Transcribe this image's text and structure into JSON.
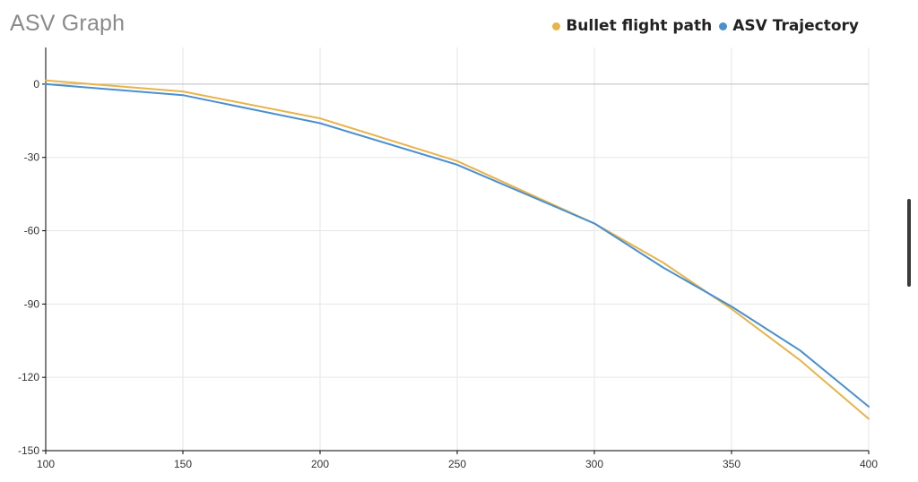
{
  "chart_data": {
    "type": "line",
    "title": "ASV Graph",
    "xlabel": "",
    "ylabel": "",
    "x": [
      100,
      150,
      200,
      250,
      300,
      325,
      350,
      375,
      400
    ],
    "xlim": [
      100,
      400
    ],
    "ylim": [
      -150,
      15
    ],
    "xticks": [
      100,
      150,
      200,
      250,
      300,
      350,
      400
    ],
    "yticks": [
      0,
      -30,
      -60,
      -90,
      -120,
      -150
    ],
    "xtick_labels": [
      "100",
      "150",
      "200",
      "250",
      "300",
      "350",
      "400"
    ],
    "ytick_labels": [
      "0",
      "-30",
      "-60",
      "-90",
      "-120",
      "-150"
    ],
    "grid": true,
    "legend_position": "top-right",
    "series": [
      {
        "name": "Bullet flight path",
        "color": "#e8b44a",
        "values": [
          1.5,
          -3,
          -14,
          -31.5,
          -57,
          -73,
          -92,
          -113,
          -137
        ]
      },
      {
        "name": "ASV Trajectory",
        "color": "#4a90d0",
        "values": [
          0,
          -4.5,
          -16,
          -33,
          -57,
          -75,
          -91,
          -109,
          -132
        ]
      }
    ]
  }
}
